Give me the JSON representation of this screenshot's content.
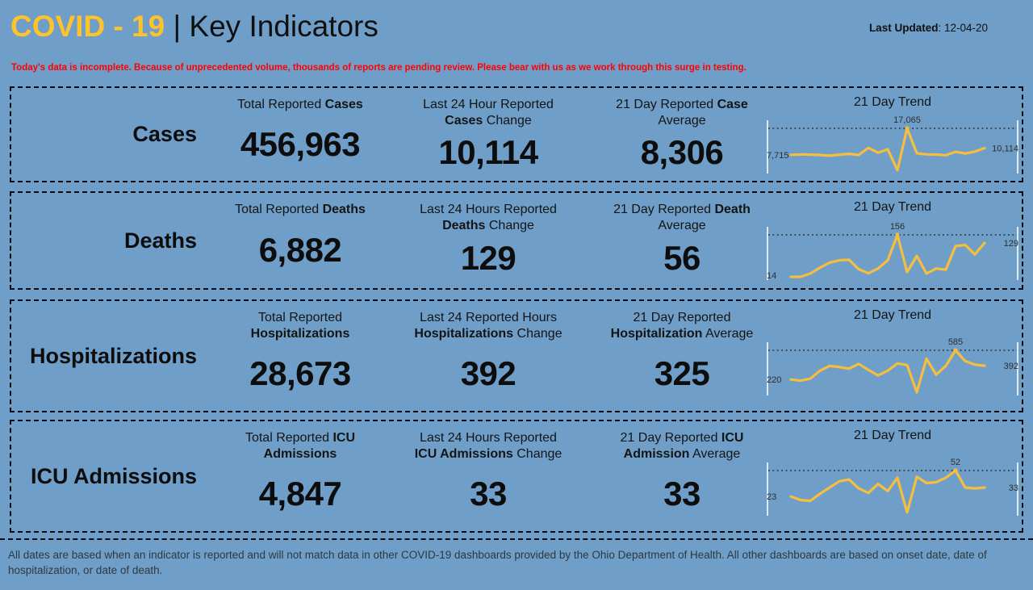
{
  "header": {
    "title_accent": "COVID - 19",
    "title_sep": "|",
    "title_rest": "Key Indicators",
    "last_updated_label": "Last Updated",
    "last_updated_value": ": 12-04-20"
  },
  "warning": "Today's data is incomplete. Because of unprecedented volume, thousands of reports are pending review. Please bear with us as we work through this surge in testing.",
  "footer": "All dates are based when an indicator is reported and will not match data in other COVID-19 dashboards provided by the Ohio Department of Health. All other dashboards are based on onset date, date of hospitalization, or date of death.",
  "colors": {
    "background": "#6f9fc8",
    "accent_gold": "#fdc22c",
    "sparkline_gold": "#f5be3e",
    "warning_red": "#ff0000",
    "text_dark": "#0d0d0d",
    "footer_text": "#2e3840"
  },
  "rows": [
    {
      "label": "Cases",
      "total": {
        "lines": [
          {
            "pre": "Total Reported ",
            "bold": "Cases"
          }
        ],
        "value": "456,963"
      },
      "change": {
        "lines": [
          {
            "pre": "Last 24 Hour Reported"
          },
          {
            "bold": "Cases",
            "post": " Change"
          }
        ],
        "value": "10,114"
      },
      "average": {
        "lines": [
          {
            "pre": "21 Day Reported ",
            "bold": "Case"
          },
          {
            "post": "Average"
          }
        ],
        "value": "8,306"
      }
    },
    {
      "label": "Deaths",
      "total": {
        "lines": [
          {
            "pre": "Total Reported ",
            "bold": "Deaths"
          }
        ],
        "value": "6,882"
      },
      "change": {
        "lines": [
          {
            "pre": "Last 24 Hours Reported"
          },
          {
            "bold": "Deaths",
            "post": " Change"
          }
        ],
        "value": "129"
      },
      "average": {
        "lines": [
          {
            "pre": "21 Day Reported ",
            "bold": "Death"
          },
          {
            "post": "Average"
          }
        ],
        "value": "56"
      }
    },
    {
      "label": "Hospitalizations",
      "total": {
        "lines": [
          {
            "pre": "Total Reported"
          },
          {
            "bold": "Hospitalizations"
          }
        ],
        "value": "28,673"
      },
      "change": {
        "lines": [
          {
            "pre": "Last 24 Reported Hours"
          },
          {
            "bold": "Hospitalizations",
            "post": " Change"
          }
        ],
        "value": "392"
      },
      "average": {
        "lines": [
          {
            "pre": "21 Day Reported"
          },
          {
            "bold": "Hospitalization",
            "post": " Average"
          }
        ],
        "value": "325"
      }
    },
    {
      "label": "ICU Admissions",
      "total": {
        "lines": [
          {
            "pre": "Total Reported ",
            "bold": "ICU"
          },
          {
            "bold": "Admissions"
          }
        ],
        "value": "4,847"
      },
      "change": {
        "lines": [
          {
            "pre": "Last 24 Hours Reported"
          },
          {
            "bold": "ICU Admissions",
            "post": " Change"
          }
        ],
        "value": "33"
      },
      "average": {
        "lines": [
          {
            "pre": "21 Day Reported ",
            "bold": "ICU"
          },
          {
            "bold": "Admission",
            "post": " Average"
          }
        ],
        "value": "33"
      }
    }
  ],
  "chart_data": [
    {
      "type": "line",
      "title": "21 Day Trend",
      "series_name": "Cases",
      "values": [
        7715,
        7900,
        7850,
        7700,
        7450,
        7800,
        8100,
        7700,
        10200,
        8500,
        9700,
        2300,
        17065,
        8300,
        7900,
        7850,
        7600,
        8800,
        8200,
        8900,
        10114
      ],
      "start_label": "7,715",
      "peak_label": "17,065",
      "end_label": "10,114",
      "dotted_reference": 17065,
      "line_color": "#f5be3e",
      "legend": "none",
      "grid": "off"
    },
    {
      "type": "line",
      "title": "21 Day Trend",
      "series_name": "Deaths",
      "values": [
        14,
        14,
        25,
        45,
        62,
        70,
        72,
        40,
        26,
        42,
        70,
        156,
        30,
        85,
        25,
        42,
        38,
        118,
        122,
        90,
        129
      ],
      "start_label": "14",
      "peak_label": "156",
      "end_label": "129",
      "dotted_reference": 156,
      "line_color": "#f5be3e",
      "legend": "none",
      "grid": "off"
    },
    {
      "type": "line",
      "title": "21 Day Trend",
      "series_name": "Hospitalizations",
      "values": [
        220,
        205,
        230,
        330,
        390,
        375,
        355,
        415,
        340,
        270,
        330,
        420,
        400,
        60,
        480,
        280,
        390,
        585,
        450,
        405,
        392
      ],
      "start_label": "220",
      "peak_label": "585",
      "end_label": "392",
      "dotted_reference": 585,
      "line_color": "#f5be3e",
      "legend": "none",
      "grid": "off"
    },
    {
      "type": "line",
      "title": "21 Day Trend",
      "series_name": "ICU Admissions",
      "values": [
        23,
        19,
        18,
        26,
        33,
        40,
        42,
        32,
        27,
        37,
        29,
        44,
        5,
        45,
        38,
        39,
        44,
        52,
        33,
        32,
        33
      ],
      "start_label": "23",
      "peak_label": "52",
      "end_label": "33",
      "dotted_reference": 52,
      "line_color": "#f5be3e",
      "legend": "none",
      "grid": "off"
    }
  ]
}
